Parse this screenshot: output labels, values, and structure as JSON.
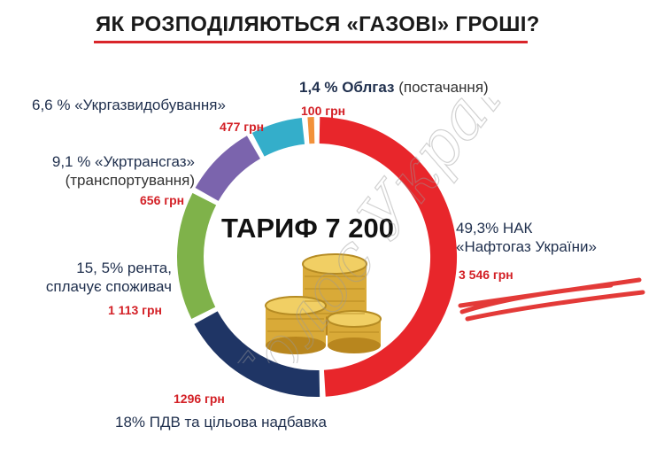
{
  "title": "ЯК РОЗПОДІЛЯЮТЬСЯ «ГАЗОВІ» ГРОШІ?",
  "center_label": "ТАРИФ 7 200",
  "watermark": "Голос України",
  "colors": {
    "naftogaz": "#e8262b",
    "pdv": "#1f3565",
    "renta": "#7fb24a",
    "ukrtransgaz": "#7b64ad",
    "ukrgazvydobuvannia": "#34aeca",
    "oblgaz": "#f2913a",
    "amount_text": "#d32026"
  },
  "labels": {
    "naftogaz": {
      "line1": "49,3% НАК",
      "line2": "«Нафтогаз України»",
      "amount": "3 546 грн"
    },
    "pdv": {
      "text": "18% ПДВ та цільова надбавка",
      "amount": "1296 грн"
    },
    "renta": {
      "line1": "15, 5% рента,",
      "line2": "сплачує споживач",
      "amount": "1 113 грн"
    },
    "ukrtransgaz": {
      "line1": "9,1 % «Укртрансгаз»",
      "line2": "(транспортування)",
      "amount": "656 грн"
    },
    "ukrgazvydobuvannia": {
      "text": "6,6 % «Укргазвидобування»",
      "amount": "477 грн"
    },
    "oblgaz": {
      "bold": "1,4 % Облгаз",
      "light": "(постачання)",
      "amount": "100 грн"
    }
  },
  "chart_data": {
    "type": "pie",
    "title": "ЯК РОЗПОДІЛЯЮТЬСЯ «ГАЗОВІ» ГРОШІ?",
    "total_label": "ТАРИФ 7 200",
    "series": [
      {
        "name": "НАК «Нафтогаз України»",
        "percent": 49.3,
        "value": 3546,
        "color": "#e8262b"
      },
      {
        "name": "ПДВ та цільова надбавка",
        "percent": 18,
        "value": 1296,
        "color": "#1f3565"
      },
      {
        "name": "рента, сплачує споживач",
        "percent": 15.5,
        "value": 1113,
        "color": "#7fb24a"
      },
      {
        "name": "«Укртрансгаз» (транспортування)",
        "percent": 9.1,
        "value": 656,
        "color": "#7b64ad"
      },
      {
        "name": "«Укргазвидобування»",
        "percent": 6.6,
        "value": 477,
        "color": "#34aeca"
      },
      {
        "name": "Облгаз (постачання)",
        "percent": 1.4,
        "value": 100,
        "color": "#f2913a"
      }
    ]
  }
}
